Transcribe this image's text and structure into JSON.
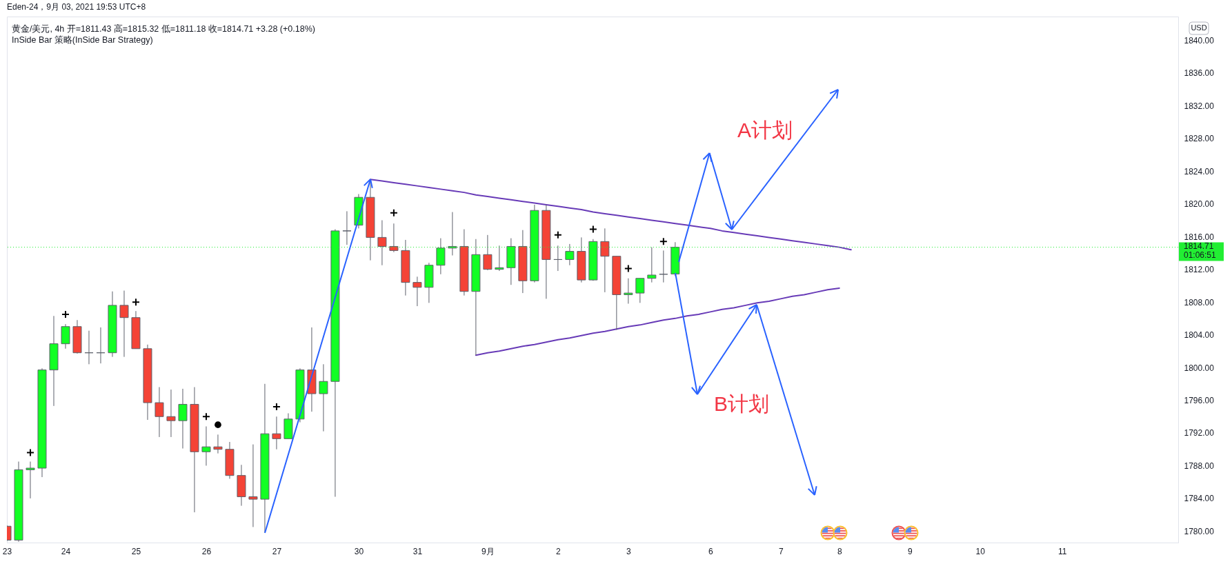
{
  "chart_data": {
    "type": "candlestick",
    "title": "黄金/美元, 4h 开=1811.43 高=1815.32 低=1811.18 收=1814.71 +3.28 (+0.18%)",
    "subtitle": "InSide Bar 策略(InSide Bar Strategy)",
    "ylabel": "USD",
    "annotations": [
      "Eden-24，9月 03, 2021 19:53 UTC+8",
      "A计划",
      "B计划"
    ],
    "categories": [
      "23",
      null,
      null,
      null,
      null,
      "24",
      null,
      null,
      null,
      null,
      null,
      "25",
      null,
      null,
      null,
      null,
      null,
      "26",
      null,
      null,
      null,
      null,
      null,
      "27",
      null,
      null,
      null,
      null,
      null,
      null,
      "30",
      null,
      null,
      null,
      null,
      "31",
      null,
      null,
      null,
      null,
      null,
      "9月",
      null,
      null,
      null,
      null,
      null,
      "2",
      null,
      null,
      null,
      null,
      null,
      "3",
      null,
      null,
      null,
      null,
      null,
      null,
      "6",
      null,
      null,
      null,
      null,
      null,
      "7",
      null,
      null,
      null,
      null,
      "8",
      null,
      null,
      null,
      null,
      null,
      "9",
      null,
      null,
      null,
      null,
      null,
      "10",
      null,
      null,
      null,
      null,
      null,
      null,
      "11",
      null,
      null,
      null,
      null,
      null,
      null,
      null,
      null,
      null
    ],
    "ohlc": [
      [
        1780.6,
        1780.7,
        1778.8,
        1778.9
      ],
      [
        1778.9,
        1788.5,
        1778.7,
        1787.5
      ],
      [
        1787.5,
        1788.5,
        1784.0,
        1787.7
      ],
      [
        1787.7,
        1799.9,
        1786.6,
        1799.7
      ],
      [
        1799.7,
        1806.3,
        1795.3,
        1802.9
      ],
      [
        1802.9,
        1805.3,
        1802.3,
        1805.0
      ],
      [
        1805.0,
        1805.8,
        1801.7,
        1801.8
      ],
      [
        1801.8,
        1804.5,
        1800.4,
        1801.8
      ],
      [
        1801.8,
        1804.9,
        1800.5,
        1801.8
      ],
      [
        1801.8,
        1809.3,
        1801.3,
        1807.6
      ],
      [
        1807.6,
        1809.4,
        1801.3,
        1806.1
      ],
      [
        1806.1,
        1806.9,
        1802.3,
        1802.3
      ],
      [
        1802.3,
        1802.8,
        1793.6,
        1795.7
      ],
      [
        1795.7,
        1797.6,
        1791.5,
        1794.0
      ],
      [
        1794.0,
        1797.3,
        1791.5,
        1793.5
      ],
      [
        1793.5,
        1797.4,
        1790.1,
        1795.5
      ],
      [
        1795.5,
        1797.6,
        1782.3,
        1789.7
      ],
      [
        1789.7,
        1792.8,
        1788.0,
        1790.3
      ],
      [
        1790.3,
        1791.8,
        1789.5,
        1790.0
      ],
      [
        1790.0,
        1790.9,
        1786.4,
        1786.8
      ],
      [
        1786.8,
        1788.1,
        1783.1,
        1784.2
      ],
      [
        1784.2,
        1790.6,
        1780.5,
        1783.9
      ],
      [
        1783.9,
        1798.0,
        1779.8,
        1791.9
      ],
      [
        1791.9,
        1794.0,
        1790.0,
        1791.3
      ],
      [
        1791.3,
        1794.4,
        1791.3,
        1793.7
      ],
      [
        1793.7,
        1799.9,
        1793.3,
        1799.7
      ],
      [
        1799.7,
        1804.9,
        1794.6,
        1796.8
      ],
      [
        1796.8,
        1800.4,
        1792.2,
        1798.3
      ],
      [
        1798.3,
        1816.9,
        1784.2,
        1816.7
      ],
      [
        1816.7,
        1819.1,
        1815.0,
        1816.7
      ],
      [
        1817.4,
        1821.2,
        1817.0,
        1820.8
      ],
      [
        1820.8,
        1822.8,
        1813.1,
        1815.9
      ],
      [
        1815.9,
        1818.0,
        1812.5,
        1814.8
      ],
      [
        1814.8,
        1817.6,
        1814.1,
        1814.3
      ],
      [
        1814.3,
        1815.6,
        1808.8,
        1810.4
      ],
      [
        1810.4,
        1811.1,
        1807.5,
        1809.8
      ],
      [
        1809.8,
        1812.8,
        1807.9,
        1812.5
      ],
      [
        1812.5,
        1815.8,
        1811.4,
        1814.6
      ],
      [
        1814.6,
        1819.0,
        1813.7,
        1814.8
      ],
      [
        1814.8,
        1816.9,
        1808.8,
        1809.3
      ],
      [
        1809.3,
        1815.7,
        1801.5,
        1813.8
      ],
      [
        1813.8,
        1816.2,
        1811.9,
        1812.0
      ],
      [
        1812.0,
        1814.9,
        1811.8,
        1812.2
      ],
      [
        1812.2,
        1815.8,
        1810.1,
        1814.8
      ],
      [
        1814.8,
        1816.8,
        1809.1,
        1810.6
      ],
      [
        1810.6,
        1819.9,
        1810.4,
        1819.2
      ],
      [
        1819.2,
        1819.9,
        1808.4,
        1813.2
      ],
      [
        1813.2,
        1814.9,
        1811.8,
        1813.2
      ],
      [
        1813.2,
        1815.1,
        1812.5,
        1814.2
      ],
      [
        1814.2,
        1815.9,
        1810.4,
        1810.7
      ],
      [
        1810.7,
        1815.7,
        1810.6,
        1815.4
      ],
      [
        1815.4,
        1817.0,
        1809.2,
        1813.6
      ],
      [
        1813.6,
        1813.6,
        1804.6,
        1808.9
      ],
      [
        1808.9,
        1810.9,
        1807.8,
        1809.1
      ],
      [
        1809.1,
        1810.9,
        1807.9,
        1810.9
      ],
      [
        1810.9,
        1814.7,
        1810.4,
        1811.3
      ],
      [
        1811.4,
        1814.3,
        1810.4,
        1811.4
      ],
      [
        1811.43,
        1815.32,
        1811.18,
        1814.71
      ],
      null,
      null,
      null,
      null,
      null,
      null,
      null,
      null,
      null,
      null,
      null,
      null,
      null,
      null,
      null,
      null,
      null,
      null,
      null,
      null,
      null,
      null,
      null,
      null,
      null,
      null,
      null,
      null,
      null,
      null,
      null,
      null,
      null,
      null,
      null,
      null,
      null,
      null,
      null,
      null,
      null,
      null
    ],
    "colors": [
      "#f44336",
      "#12ff24",
      "#12ff24",
      "#12ff24",
      "#12ff24",
      "#12ff24",
      "#f44336",
      "#5d606b",
      "#5d606b",
      "#12ff24",
      "#f44336",
      "#f44336",
      "#f44336",
      "#f44336",
      "#f44336",
      "#12ff24",
      "#f44336",
      "#12ff24",
      "#f44336",
      "#f44336",
      "#f44336",
      "#f44336",
      "#12ff24",
      "#f44336",
      "#12ff24",
      "#12ff24",
      "#f44336",
      "#12ff24",
      "#12ff24",
      "#5d606b",
      "#12ff24",
      "#f44336",
      "#f44336",
      "#f44336",
      "#f44336",
      "#f44336",
      "#12ff24",
      "#12ff24",
      "#12ff24",
      "#f44336",
      "#12ff24",
      "#f44336",
      "#12ff24",
      "#12ff24",
      "#f44336",
      "#12ff24",
      "#f44336",
      "#5d606b",
      "#12ff24",
      "#f44336",
      "#12ff24",
      "#f44336",
      "#f44336",
      "#12ff24",
      "#12ff24",
      "#12ff24",
      "#5d606b",
      "#12ff24",
      null,
      null,
      null,
      null,
      null,
      null,
      null,
      null,
      null,
      null,
      null,
      null,
      null,
      null,
      null,
      null,
      null,
      null,
      null,
      null,
      null,
      null,
      null,
      null,
      null,
      null,
      null,
      null,
      null,
      null,
      null,
      null,
      null,
      null,
      null,
      null,
      null,
      null,
      null,
      null,
      null,
      null
    ],
    "ylim": [
      1778.6,
      1842.9
    ],
    "yticks": [
      {
        "value": 1780,
        "label": "1780.00"
      },
      {
        "value": 1784,
        "label": "1784.00"
      },
      {
        "value": 1788,
        "label": "1788.00"
      },
      {
        "value": 1792,
        "label": "1792.00"
      },
      {
        "value": 1796,
        "label": "1796.00"
      },
      {
        "value": 1800,
        "label": "1800.00"
      },
      {
        "value": 1804,
        "label": "1804.00"
      },
      {
        "value": 1808,
        "label": "1808.00"
      },
      {
        "value": 1812,
        "label": "1812.00"
      },
      {
        "value": 1816,
        "label": "1816.00"
      },
      {
        "value": 1820,
        "label": "1820.00"
      },
      {
        "value": 1824,
        "label": "1824.00"
      },
      {
        "value": 1828,
        "label": "1828.00"
      },
      {
        "value": 1832,
        "label": "1832.00"
      },
      {
        "value": 1836,
        "label": "1836.00"
      },
      {
        "value": 1840,
        "label": "1840.00"
      }
    ],
    "ref_lines": [
      {
        "axis": "y",
        "value": 1814.71,
        "label": "1814.71\n01:06:51",
        "color": "#22ee33",
        "line_style": "dotted"
      }
    ],
    "series": [
      {
        "type": "line",
        "color": "#673ab7",
        "values": [
          null,
          null,
          null,
          null,
          null,
          null,
          null,
          null,
          null,
          null,
          null,
          null,
          null,
          null,
          null,
          null,
          null,
          null,
          null,
          null,
          null,
          null,
          null,
          null,
          null,
          null,
          null,
          null,
          null,
          null,
          null,
          1823.0,
          1822.8,
          1822.6,
          1822.4,
          1822.2,
          1822.0,
          1821.8,
          1821.6,
          1821.4,
          1821.1,
          1820.9,
          1820.7,
          1820.5,
          1820.3,
          1820.1,
          1819.9,
          1819.7,
          1819.5,
          1819.3,
          1819.0,
          1818.8,
          1818.6,
          1818.4,
          1818.2,
          1818.0,
          1817.8,
          1817.6,
          1817.4,
          1817.2,
          1817.0,
          1816.7,
          1816.5,
          1816.3,
          1816.1,
          1815.9,
          1815.7,
          1815.5,
          1815.3,
          1815.1,
          1814.9,
          1814.7,
          1814.4,
          null,
          null,
          null,
          null,
          null,
          null,
          null,
          null,
          null,
          null,
          null,
          null,
          null,
          null,
          null,
          null,
          null,
          null,
          null,
          null,
          null,
          null,
          null,
          null,
          null,
          null,
          null
        ]
      },
      {
        "type": "line",
        "color": "#673ab7",
        "values": [
          null,
          null,
          null,
          null,
          null,
          null,
          null,
          null,
          null,
          null,
          null,
          null,
          null,
          null,
          null,
          null,
          null,
          null,
          null,
          null,
          null,
          null,
          null,
          null,
          null,
          null,
          null,
          null,
          null,
          null,
          null,
          null,
          null,
          null,
          null,
          null,
          null,
          null,
          null,
          null,
          1801.5,
          1801.8,
          1802.0,
          1802.3,
          1802.6,
          1802.8,
          1803.1,
          1803.4,
          1803.6,
          1803.9,
          1804.2,
          1804.4,
          1804.7,
          1805.0,
          1805.2,
          1805.5,
          1805.8,
          1806.0,
          1806.3,
          1806.5,
          1806.8,
          1807.1,
          1807.3,
          1807.6,
          1807.9,
          1808.1,
          1808.4,
          1808.7,
          1808.9,
          1809.2,
          1809.5,
          1809.7,
          null,
          null,
          null,
          null,
          null,
          null,
          null,
          null,
          null,
          null,
          null,
          null,
          null,
          null,
          null,
          null,
          null,
          null,
          null,
          null,
          null,
          null,
          null,
          null,
          null,
          null,
          null,
          null
        ]
      },
      {
        "type": "scatter",
        "marker": "cross",
        "color": "#000000",
        "values": [
          null,
          null,
          1789.6,
          null,
          null,
          1806.5,
          null,
          null,
          null,
          null,
          null,
          1808.0,
          null,
          null,
          null,
          null,
          null,
          1794.0,
          null,
          null,
          null,
          null,
          null,
          1795.2,
          null,
          null,
          null,
          null,
          null,
          null,
          null,
          null,
          null,
          1818.9,
          null,
          null,
          null,
          null,
          null,
          null,
          null,
          null,
          null,
          null,
          null,
          null,
          null,
          1816.2,
          null,
          null,
          1816.9,
          null,
          null,
          1812.1,
          null,
          null,
          1815.4,
          null,
          null,
          null,
          null,
          null,
          null,
          null,
          null,
          null,
          null,
          null,
          null,
          null,
          null,
          null,
          null,
          null,
          null,
          null,
          null,
          null,
          null,
          null,
          null,
          null,
          null,
          null,
          null,
          null,
          null,
          null,
          null,
          null,
          null,
          null,
          null,
          null,
          null,
          null,
          null,
          null,
          null,
          null
        ]
      },
      {
        "type": "scatter",
        "marker": "circle",
        "color": "#000000",
        "values": [
          null,
          null,
          null,
          null,
          null,
          null,
          null,
          null,
          null,
          null,
          null,
          null,
          null,
          null,
          null,
          null,
          null,
          null,
          1793.0,
          null,
          null,
          null,
          null,
          null,
          null,
          null,
          null,
          null,
          null,
          null,
          null,
          null,
          null,
          null,
          null,
          null,
          null,
          null,
          null,
          null,
          null,
          null,
          null,
          null,
          null,
          null,
          null,
          null,
          null,
          null,
          null,
          null,
          null,
          null,
          null,
          null,
          null,
          null,
          null,
          null,
          null,
          null,
          null,
          null,
          null,
          null,
          null,
          null,
          null,
          null,
          null,
          null,
          null,
          null,
          null,
          null,
          null,
          null,
          null,
          null,
          null,
          null,
          null,
          null,
          null,
          null,
          null,
          null,
          null,
          null,
          null,
          null,
          null,
          null,
          null,
          null,
          null,
          null,
          null,
          null
        ]
      }
    ]
  }
}
